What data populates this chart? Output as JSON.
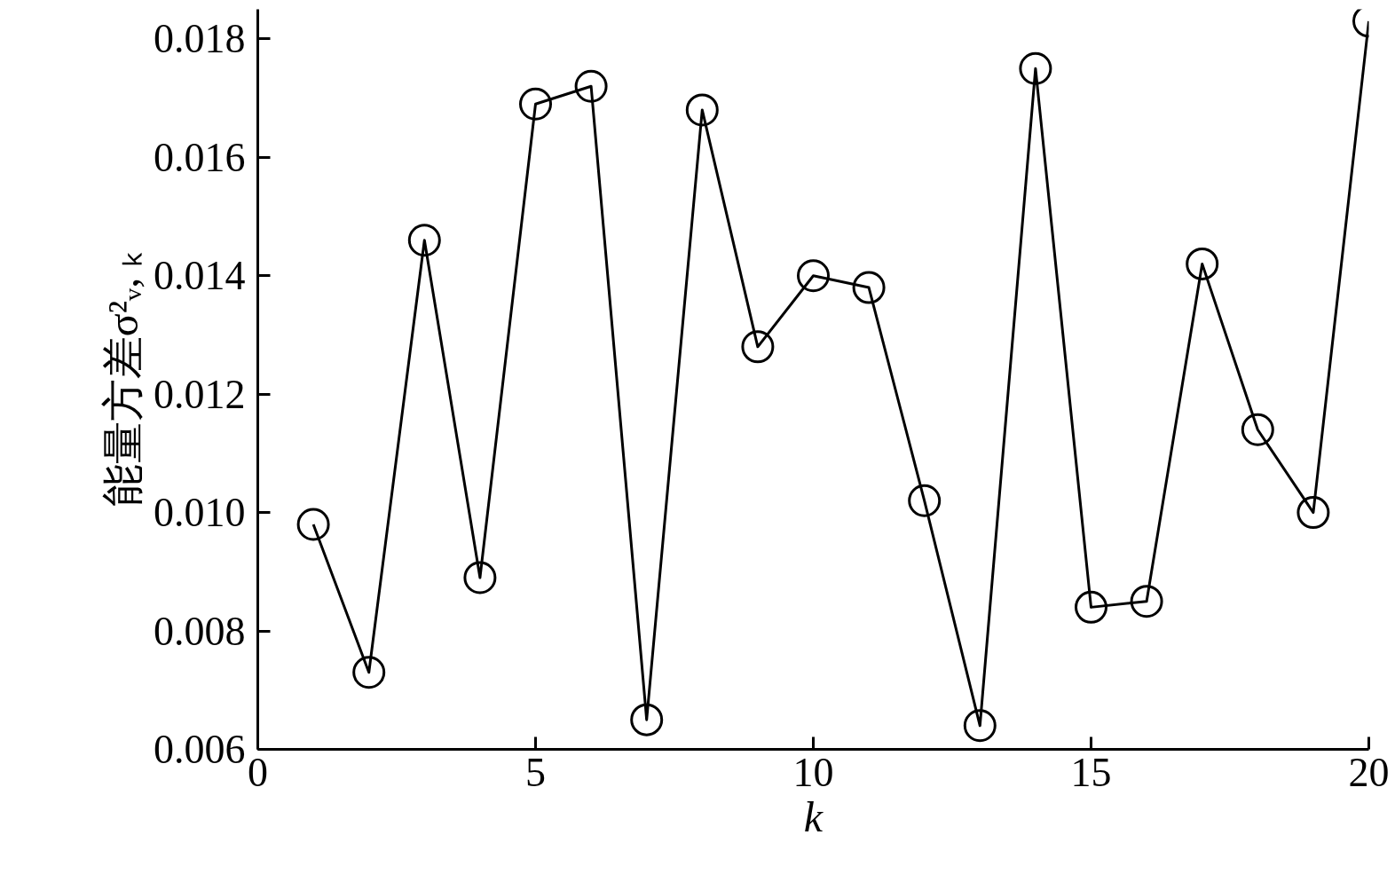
{
  "chart_data": {
    "type": "line",
    "xlabel": "k",
    "ylabel": "能量方差σ²ᵥ, ₖ",
    "x": [
      1,
      2,
      3,
      4,
      5,
      6,
      7,
      8,
      9,
      10,
      11,
      12,
      13,
      14,
      15,
      16,
      17,
      18,
      19,
      20
    ],
    "values": [
      0.0098,
      0.0073,
      0.0146,
      0.0089,
      0.0169,
      0.0172,
      0.0065,
      0.0168,
      0.0128,
      0.014,
      0.0138,
      0.0102,
      0.0064,
      0.0175,
      0.0084,
      0.0085,
      0.0142,
      0.0114,
      0.01,
      0.0183
    ],
    "color": "#000000",
    "marker": "circle",
    "line_style": "solid",
    "grid": false,
    "xlim": [
      0,
      20
    ],
    "ylim": [
      0.006,
      0.0185
    ],
    "xticks": [
      0,
      5,
      10,
      15,
      20
    ],
    "yticks": [
      {
        "value": 0.006,
        "label": "0.006"
      },
      {
        "value": 0.008,
        "label": "0.008"
      },
      {
        "value": 0.01,
        "label": "0.010"
      },
      {
        "value": 0.012,
        "label": "0.012"
      },
      {
        "value": 0.014,
        "label": "0.014"
      },
      {
        "value": 0.016,
        "label": "0.016"
      },
      {
        "value": 0.018,
        "label": "0.018"
      }
    ]
  }
}
